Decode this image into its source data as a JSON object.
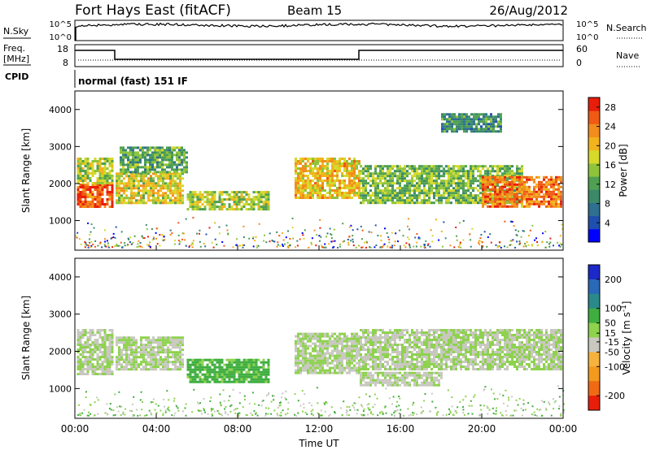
{
  "header": {
    "site": "Fort Hays East (fitACF)",
    "beam": "Beam 15",
    "date": "26/Aug/2012"
  },
  "top_panels": {
    "nsky_label": "N.Sky",
    "nsearch_label": "N.Search",
    "noise_ticks": [
      "10^5",
      "10^0"
    ],
    "freq_label_line1": "Freq.",
    "freq_label_line2": "[MHz]",
    "freq_ticks": [
      "18",
      "8"
    ],
    "nave_label": "Nave",
    "nave_ticks": [
      "60",
      "0"
    ],
    "cpid_label": "CPID",
    "cpid_text": "normal (fast) 151 IF"
  },
  "colors": {
    "power_scale": [
      "#0000ff",
      "#1f4fae",
      "#2f6f8f",
      "#3a8a6a",
      "#4fa052",
      "#8fc43a",
      "#d6d92a",
      "#f2b31c",
      "#f28c1c",
      "#f05a14",
      "#e81e0a"
    ],
    "velocity_scale": [
      "#1c28c8",
      "#2a68b8",
      "#2a8a8a",
      "#3fae3f",
      "#8ed24e",
      "#c8c8c0",
      "#f6b23c",
      "#f29a1e",
      "#f06a14",
      "#e81e0a"
    ]
  },
  "chart_data": [
    {
      "type": "heatmap",
      "panel": "power",
      "ylabel": "Slant Range [km]",
      "y_ticks": [
        1000,
        2000,
        3000,
        4000
      ],
      "ylim": [
        200,
        4500
      ],
      "x_ticks": [
        "00:00",
        "04:00",
        "08:00",
        "12:00",
        "16:00",
        "20:00",
        "00:00"
      ],
      "xlim_hours": [
        0,
        24
      ],
      "colorbar_label": "Power [dB]",
      "colorbar_ticks": [
        4,
        8,
        12,
        16,
        20,
        24,
        28
      ],
      "colorbar_range": [
        0,
        30
      ],
      "bands": [
        {
          "t": [
            0.1,
            1.9
          ],
          "range_km": [
            1400,
            2000
          ],
          "value": 26
        },
        {
          "t": [
            0.1,
            1.9
          ],
          "range_km": [
            2000,
            2700
          ],
          "value": 16
        },
        {
          "t": [
            2.0,
            5.3
          ],
          "range_km": [
            1500,
            2300
          ],
          "value": 18
        },
        {
          "t": [
            2.2,
            5.5
          ],
          "range_km": [
            2300,
            3000
          ],
          "value": 12
        },
        {
          "t": [
            5.5,
            9.5
          ],
          "range_km": [
            1300,
            1800
          ],
          "value": 16
        },
        {
          "t": [
            10.8,
            14.0
          ],
          "range_km": [
            1600,
            2700
          ],
          "value": 20
        },
        {
          "t": [
            14.0,
            22.0
          ],
          "range_km": [
            1500,
            2500
          ],
          "value": 14
        },
        {
          "t": [
            20.0,
            23.9
          ],
          "range_km": [
            1400,
            2200
          ],
          "value": 24
        },
        {
          "t": [
            18.0,
            21.0
          ],
          "range_km": [
            3400,
            3900
          ],
          "value": 10
        }
      ]
    },
    {
      "type": "heatmap",
      "panel": "velocity",
      "ylabel": "Slant Range [km]",
      "y_ticks": [
        1000,
        2000,
        3000,
        4000
      ],
      "ylim": [
        200,
        4500
      ],
      "x_ticks": [
        "00:00",
        "04:00",
        "08:00",
        "12:00",
        "16:00",
        "20:00",
        "00:00"
      ],
      "xlabel": "Time UT",
      "xlim_hours": [
        0,
        24
      ],
      "colorbar_label": "Velocity [m s^-1]",
      "colorbar_ticks": [
        200,
        100,
        50,
        15,
        -15,
        -50,
        -100,
        -200
      ],
      "colorbar_range": [
        -250,
        250
      ],
      "bands": [
        {
          "t": [
            0.1,
            1.9
          ],
          "range_km": [
            1400,
            2600
          ],
          "value": 0
        },
        {
          "t": [
            2.0,
            5.3
          ],
          "range_km": [
            1500,
            2400
          ],
          "value": 0
        },
        {
          "t": [
            5.5,
            9.5
          ],
          "range_km": [
            1200,
            1800
          ],
          "value": 70
        },
        {
          "t": [
            10.8,
            14.0
          ],
          "range_km": [
            1400,
            2500
          ],
          "value": 0
        },
        {
          "t": [
            14.0,
            23.9
          ],
          "range_km": [
            1500,
            2600
          ],
          "value": 0
        },
        {
          "t": [
            14.0,
            18.0
          ],
          "range_km": [
            1100,
            1450
          ],
          "value": -5
        }
      ]
    }
  ]
}
